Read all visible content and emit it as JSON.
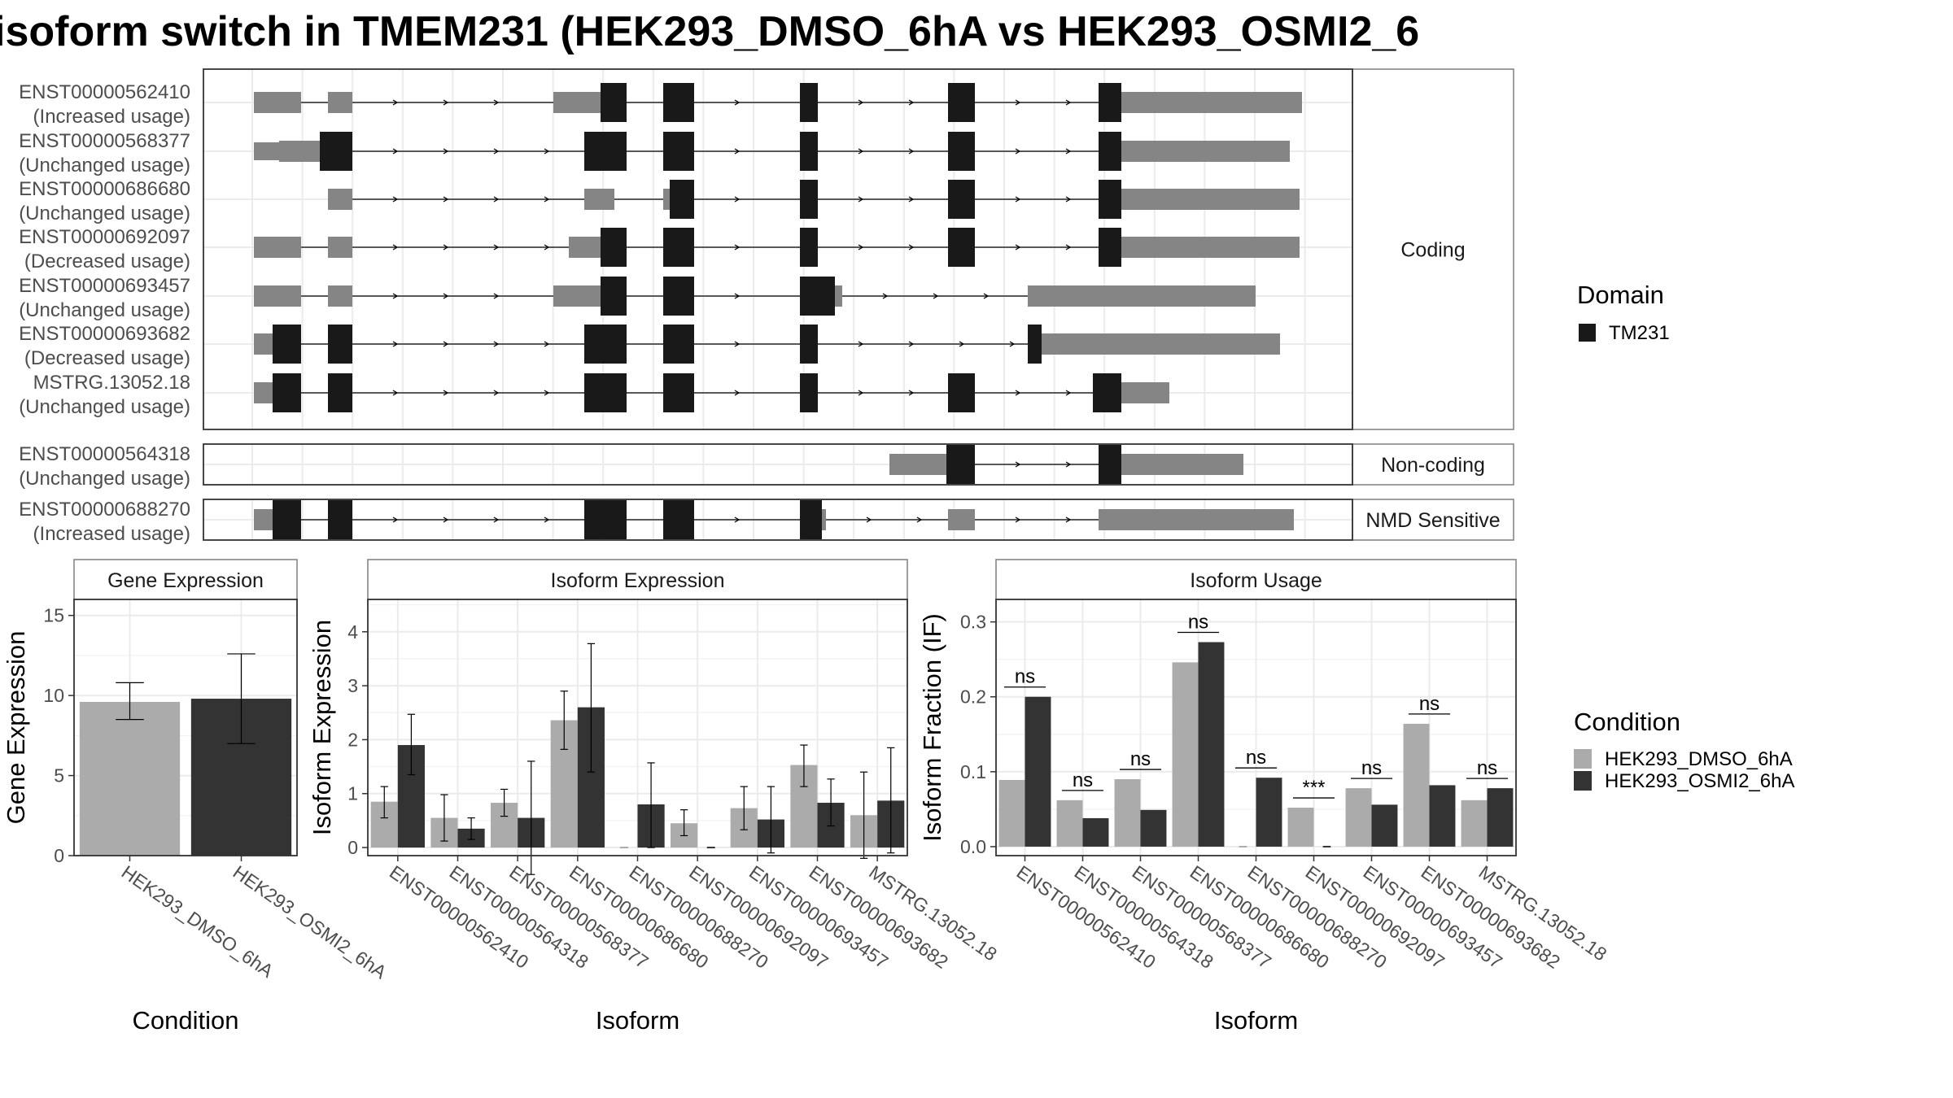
{
  "title": "isoform switch in TMEM231 (HEK293_DMSO_6hA vs HEK293_OSMI2_6",
  "colors": {
    "dmso": "#ababab",
    "osmi": "#333333",
    "exon_utr": "#858585",
    "domain": "#191919",
    "grid": "#ebebeb",
    "panel_border": "#333333",
    "strip_border": "#7f7f7f"
  },
  "structure": {
    "groups": [
      {
        "label": "Coding",
        "transcripts": [
          {
            "id": "ENST00000562410",
            "usage": "(Increased usage)"
          },
          {
            "id": "ENST00000568377",
            "usage": "(Unchanged usage)"
          },
          {
            "id": "ENST00000686680",
            "usage": "(Unchanged usage)"
          },
          {
            "id": "ENST00000692097",
            "usage": "(Decreased usage)"
          },
          {
            "id": "ENST00000693457",
            "usage": "(Unchanged usage)"
          },
          {
            "id": "ENST00000693682",
            "usage": "(Decreased usage)"
          },
          {
            "id": "MSTRG.13052.18",
            "usage": "(Unchanged usage)"
          }
        ]
      },
      {
        "label": "Non-coding",
        "transcripts": [
          {
            "id": "ENST00000564318",
            "usage": "(Unchanged usage)"
          }
        ]
      },
      {
        "label": "NMD Sensitive",
        "transcripts": [
          {
            "id": "ENST00000688270",
            "usage": "(Increased usage)"
          }
        ]
      }
    ],
    "domain_legend": {
      "title": "Domain",
      "items": [
        "TM231"
      ]
    }
  },
  "chart_data": [
    {
      "type": "bar",
      "title": "Gene Expression",
      "xlabel": "Condition",
      "ylabel": "Gene Expression",
      "categories": [
        "HEK293_DMSO_6hA",
        "HEK293_OSMI2_6hA"
      ],
      "values": [
        9.6,
        9.8
      ],
      "error": [
        [
          8.5,
          10.8
        ],
        [
          7.0,
          12.6
        ]
      ],
      "ylim": [
        0,
        16
      ],
      "yticks": [
        0,
        5,
        10,
        15
      ]
    },
    {
      "type": "bar",
      "title": "Isoform Expression",
      "xlabel": "Isoform",
      "ylabel": "Isoform Expression",
      "categories": [
        "ENST00000562410",
        "ENST00000564318",
        "ENST00000568377",
        "ENST00000686680",
        "ENST00000688270",
        "ENST00000692097",
        "ENST00000693457",
        "ENST00000693682",
        "MSTRG.13052.18"
      ],
      "series": [
        {
          "name": "HEK293_DMSO_6hA",
          "values": [
            0.85,
            0.55,
            0.83,
            2.36,
            0.0,
            0.45,
            0.73,
            1.53,
            0.6
          ],
          "error": [
            [
              0.55,
              1.13
            ],
            [
              0.12,
              0.98
            ],
            [
              0.58,
              1.08
            ],
            [
              1.82,
              2.9
            ],
            [
              0.0,
              0.0
            ],
            [
              0.22,
              0.7
            ],
            [
              0.33,
              1.13
            ],
            [
              1.13,
              1.9
            ],
            [
              -0.2,
              1.4
            ]
          ]
        },
        {
          "name": "HEK293_OSMI2_6hA",
          "values": [
            1.9,
            0.35,
            0.55,
            2.6,
            0.8,
            0.0,
            0.52,
            0.83,
            0.87
          ],
          "error": [
            [
              1.35,
              2.47
            ],
            [
              0.15,
              0.55
            ],
            [
              -0.5,
              1.6
            ],
            [
              1.4,
              3.78
            ],
            [
              0.0,
              1.57
            ],
            [
              0.0,
              0.0
            ],
            [
              -0.1,
              1.13
            ],
            [
              0.4,
              1.27
            ],
            [
              -0.1,
              1.85
            ]
          ]
        }
      ],
      "ylim": [
        -0.15,
        4.6
      ],
      "yticks": [
        0,
        1,
        2,
        3,
        4
      ]
    },
    {
      "type": "bar",
      "title": "Isoform Usage",
      "xlabel": "Isoform",
      "ylabel": "Isoform Fraction (IF)",
      "categories": [
        "ENST00000562410",
        "ENST00000564318",
        "ENST00000568377",
        "ENST00000686680",
        "ENST00000688270",
        "ENST00000692097",
        "ENST00000693457",
        "ENST00000693682",
        "MSTRG.13052.18"
      ],
      "series": [
        {
          "name": "HEK293_DMSO_6hA",
          "values": [
            0.089,
            0.062,
            0.09,
            0.246,
            0.0,
            0.052,
            0.078,
            0.164,
            0.062
          ]
        },
        {
          "name": "HEK293_OSMI2_6hA",
          "values": [
            0.2,
            0.038,
            0.049,
            0.273,
            0.092,
            0.0,
            0.056,
            0.082,
            0.078
          ]
        }
      ],
      "significance": [
        "ns",
        "ns",
        "ns",
        "ns",
        "ns",
        "***",
        "ns",
        "ns",
        "ns"
      ],
      "ylim": [
        -0.012,
        0.33
      ],
      "yticks": [
        "0.0",
        "0.1",
        "0.2",
        "0.3"
      ]
    }
  ],
  "condition_legend": {
    "title": "Condition",
    "items": [
      "HEK293_DMSO_6hA",
      "HEK293_OSMI2_6hA"
    ]
  }
}
